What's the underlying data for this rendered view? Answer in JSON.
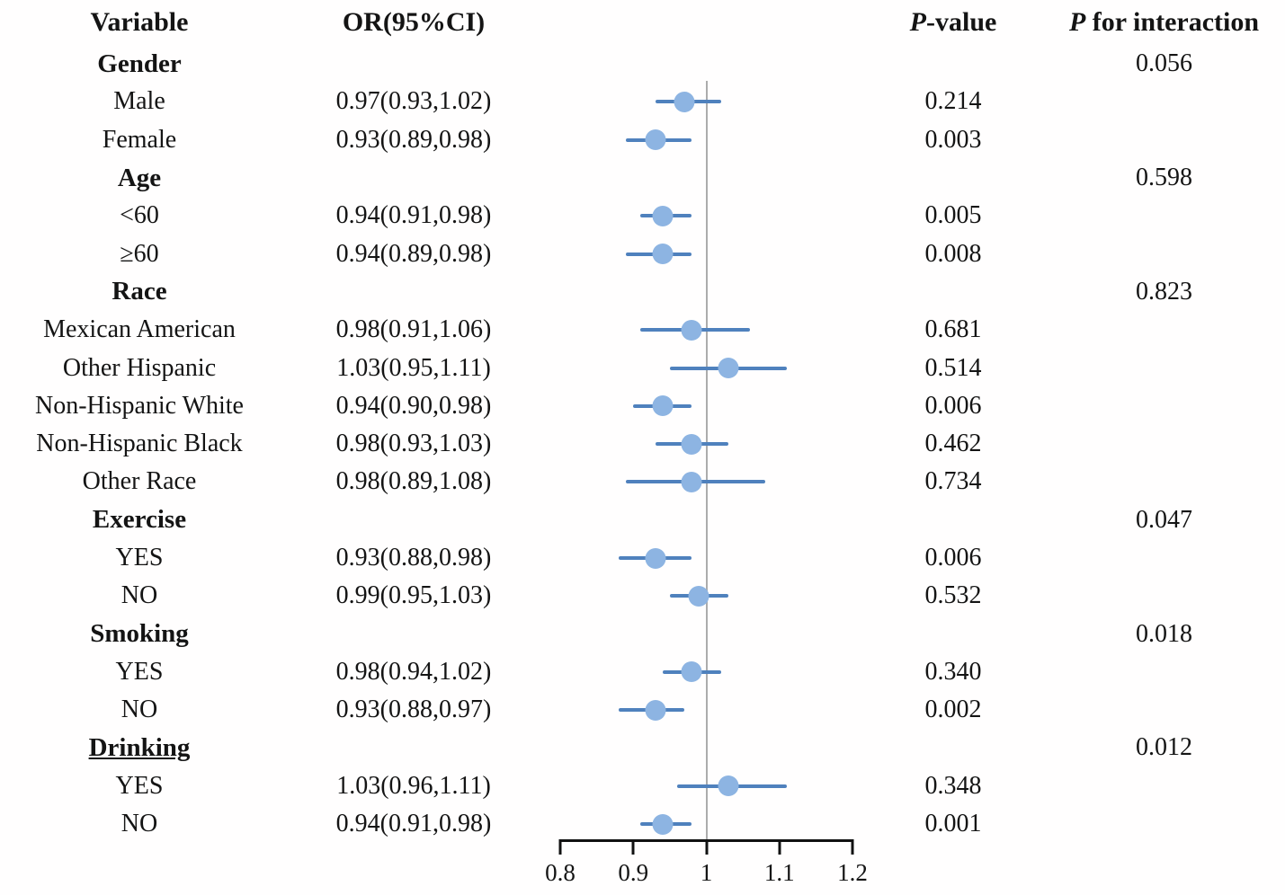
{
  "header": {
    "variable": "Variable",
    "or_ci": "OR(95%CI)",
    "p_value": {
      "italic": "P",
      "rest": "-value"
    },
    "p_interaction": {
      "italic": "P",
      "rest": " for interaction"
    }
  },
  "colors": {
    "marker": "#8DB4E2",
    "ci_line": "#4F81BD",
    "ref_line": "#ACACAC",
    "axis": "#111111",
    "text": "#141414"
  },
  "chart_data": {
    "type": "forest",
    "title": "",
    "xlabel": "",
    "axis": {
      "min": 0.8,
      "max": 1.2,
      "ref_line": 1,
      "ticks": [
        0.8,
        0.9,
        1,
        1.1,
        1.2
      ],
      "tick_labels": [
        "0.8",
        "0.9",
        "1",
        "1.1",
        "1.2"
      ]
    },
    "rows": [
      {
        "kind": "section",
        "label": "Gender",
        "p_interaction": "0.056"
      },
      {
        "kind": "item",
        "label": "Male",
        "or": 0.97,
        "ci_low": 0.93,
        "ci_high": 1.02,
        "or_ci": "0.97(0.93,1.02)",
        "p_value": "0.214"
      },
      {
        "kind": "item",
        "label": "Female",
        "or": 0.93,
        "ci_low": 0.89,
        "ci_high": 0.98,
        "or_ci": "0.93(0.89,0.98)",
        "p_value": "0.003"
      },
      {
        "kind": "section",
        "label": "Age",
        "p_interaction": "0.598"
      },
      {
        "kind": "item",
        "label": "<60",
        "or": 0.94,
        "ci_low": 0.91,
        "ci_high": 0.98,
        "or_ci": "0.94(0.91,0.98)",
        "p_value": "0.005"
      },
      {
        "kind": "item",
        "label": "≥60",
        "or": 0.94,
        "ci_low": 0.89,
        "ci_high": 0.98,
        "or_ci": "0.94(0.89,0.98)",
        "p_value": "0.008"
      },
      {
        "kind": "section",
        "label": "Race",
        "p_interaction": "0.823"
      },
      {
        "kind": "item",
        "label": "Mexican American",
        "or": 0.98,
        "ci_low": 0.91,
        "ci_high": 1.06,
        "or_ci": "0.98(0.91,1.06)",
        "p_value": "0.681"
      },
      {
        "kind": "item",
        "label": "Other Hispanic",
        "or": 1.03,
        "ci_low": 0.95,
        "ci_high": 1.11,
        "or_ci": "1.03(0.95,1.11)",
        "p_value": "0.514"
      },
      {
        "kind": "item",
        "label": "Non-Hispanic White",
        "or": 0.94,
        "ci_low": 0.9,
        "ci_high": 0.98,
        "or_ci": "0.94(0.90,0.98)",
        "p_value": "0.006"
      },
      {
        "kind": "item",
        "label": "Non-Hispanic Black",
        "or": 0.98,
        "ci_low": 0.93,
        "ci_high": 1.03,
        "or_ci": "0.98(0.93,1.03)",
        "p_value": "0.462"
      },
      {
        "kind": "item",
        "label": "Other Race",
        "or": 0.98,
        "ci_low": 0.89,
        "ci_high": 1.08,
        "or_ci": "0.98(0.89,1.08)",
        "p_value": "0.734"
      },
      {
        "kind": "section",
        "label": "Exercise",
        "p_interaction": "0.047"
      },
      {
        "kind": "item",
        "label": "YES",
        "or": 0.93,
        "ci_low": 0.88,
        "ci_high": 0.98,
        "or_ci": "0.93(0.88,0.98)",
        "p_value": "0.006"
      },
      {
        "kind": "item",
        "label": "NO",
        "or": 0.99,
        "ci_low": 0.95,
        "ci_high": 1.03,
        "or_ci": "0.99(0.95,1.03)",
        "p_value": "0.532"
      },
      {
        "kind": "section",
        "label": "Smoking",
        "p_interaction": "0.018"
      },
      {
        "kind": "item",
        "label": "YES",
        "or": 0.98,
        "ci_low": 0.94,
        "ci_high": 1.02,
        "or_ci": "0.98(0.94,1.02)",
        "p_value": "0.340"
      },
      {
        "kind": "item",
        "label": "NO",
        "or": 0.93,
        "ci_low": 0.88,
        "ci_high": 0.97,
        "or_ci": "0.93(0.88,0.97)",
        "p_value": "0.002"
      },
      {
        "kind": "section",
        "label": "Drinking",
        "p_interaction": "0.012",
        "underline": true
      },
      {
        "kind": "item",
        "label": "YES",
        "or": 1.03,
        "ci_low": 0.96,
        "ci_high": 1.11,
        "or_ci": "1.03(0.96,1.11)",
        "p_value": "0.348"
      },
      {
        "kind": "item",
        "label": "NO",
        "or": 0.94,
        "ci_low": 0.91,
        "ci_high": 0.98,
        "or_ci": "0.94(0.91,0.98)",
        "p_value": "0.001"
      }
    ]
  }
}
